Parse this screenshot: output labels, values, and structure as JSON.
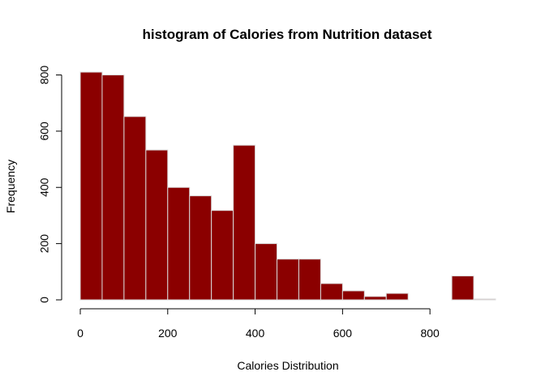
{
  "chart_data": {
    "type": "bar",
    "title": "histogram of Calories from Nutrition dataset",
    "xlabel": "Calories Distribution",
    "ylabel": "Frequency",
    "bin_width": 50,
    "bin_starts": [
      0,
      50,
      100,
      150,
      200,
      250,
      300,
      350,
      400,
      450,
      500,
      550,
      600,
      650,
      700,
      750,
      800,
      850,
      900
    ],
    "values": [
      810,
      800,
      652,
      533,
      400,
      370,
      318,
      550,
      200,
      145,
      145,
      58,
      32,
      12,
      23,
      0,
      0,
      85,
      3
    ],
    "xlim": [
      0,
      950
    ],
    "ylim": [
      0,
      810
    ],
    "x_ticks": [
      0,
      200,
      400,
      600,
      800
    ],
    "x_tick_labels": [
      "0",
      "200",
      "400",
      "600",
      "800"
    ],
    "y_ticks": [
      0,
      200,
      400,
      600,
      800
    ],
    "y_tick_labels": [
      "0",
      "200",
      "400",
      "600",
      "800"
    ],
    "grid": false,
    "bar_fill": "#8B0000",
    "bar_border": "#d9d9d9"
  }
}
